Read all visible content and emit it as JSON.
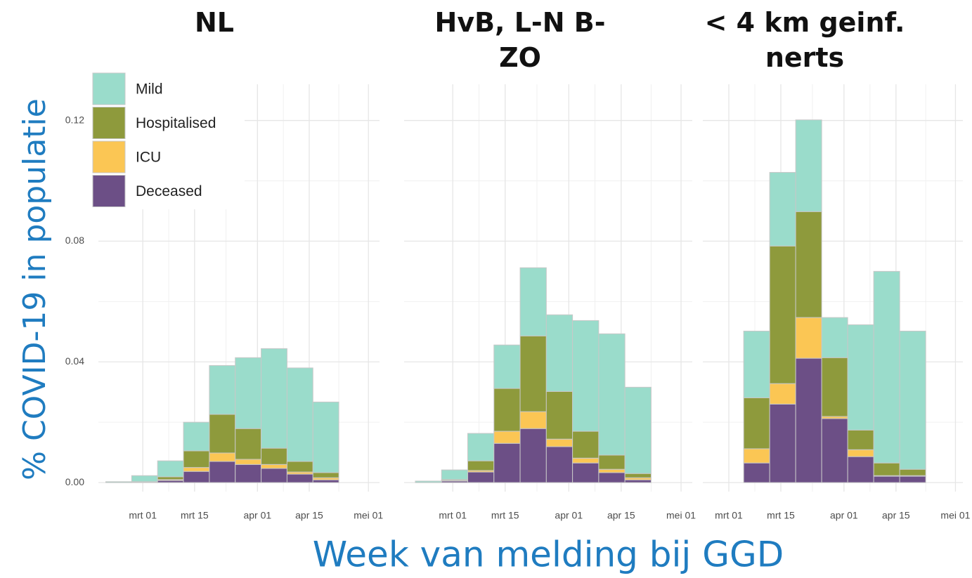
{
  "ylabel": "% COVID-19 in populatie",
  "xlabel": "Week van melding bij GGD",
  "chart_data": [
    {
      "type": "histogram",
      "title": [
        "NL"
      ],
      "legend": "top-left",
      "grid": true,
      "bins": [
        "02-20",
        "02-27",
        "03-05",
        "03-12",
        "03-19",
        "03-26",
        "04-02",
        "04-09",
        "04-16",
        "04-23"
      ],
      "xlim": [
        "02-18",
        "05-04"
      ],
      "xticks": [
        {
          "value": "03-01",
          "label": "mrt 01"
        },
        {
          "value": "03-15",
          "label": "mrt 15"
        },
        {
          "value": "04-01",
          "label": "apr 01"
        },
        {
          "value": "04-15",
          "label": "apr 15"
        },
        {
          "value": "05-01",
          "label": "mei 01"
        }
      ],
      "ylim": [
        -0.003,
        0.132
      ],
      "yticks": [
        {
          "value": 0,
          "label": "0.00"
        },
        0.04,
        0.08,
        0.12
      ],
      "series": [
        {
          "name": "Mild",
          "color": "#9adccb",
          "values": [
            0.0003,
            0.002,
            0.0053,
            0.0095,
            0.0162,
            0.0235,
            0.033,
            0.031,
            0.0234
          ]
        },
        {
          "name": "Hospitalised",
          "color": "#8e9a3c",
          "values": [
            0,
            0.0001,
            0.0009,
            0.0055,
            0.0128,
            0.0102,
            0.0054,
            0.0035,
            0.0017
          ]
        },
        {
          "name": "ICU",
          "color": "#fbc654",
          "values": [
            0,
            0.0001,
            0.0003,
            0.0013,
            0.0028,
            0.0017,
            0.0013,
            0.0007,
            0.0007
          ]
        },
        {
          "name": "Deceased",
          "color": "#6c4f86",
          "values": [
            0,
            0.0001,
            0.0007,
            0.0037,
            0.007,
            0.006,
            0.0047,
            0.0028,
            0.0009
          ]
        }
      ]
    },
    {
      "type": "histogram",
      "title": [
        "HvB,  L-N B-",
        "ZO"
      ],
      "grid": true,
      "bins": [
        "02-20",
        "02-27",
        "03-05",
        "03-12",
        "03-19",
        "03-26",
        "04-02",
        "04-09",
        "04-16",
        "04-23"
      ],
      "xlim": [
        "02-17",
        "05-04"
      ],
      "xticks": [
        {
          "value": "03-01",
          "label": "mrt 01"
        },
        {
          "value": "03-15",
          "label": "mrt 15"
        },
        {
          "value": "04-01",
          "label": "apr 01"
        },
        {
          "value": "04-15",
          "label": "apr 15"
        },
        {
          "value": "05-01",
          "label": "mei 01"
        }
      ],
      "ylim": [
        -0.003,
        0.132
      ],
      "yticks": [
        0,
        0.04,
        0.08,
        0.12
      ],
      "series": [
        {
          "name": "Mild",
          "color": "#9adccb",
          "values": [
            0.0005,
            0.0032,
            0.0091,
            0.0144,
            0.0226,
            0.0254,
            0.0367,
            0.0402,
            0.0286
          ]
        },
        {
          "name": "Hospitalised",
          "color": "#8e9a3c",
          "values": [
            0,
            0.0003,
            0.0032,
            0.0142,
            0.0251,
            0.0158,
            0.0089,
            0.0047,
            0.0014
          ]
        },
        {
          "name": "ICU",
          "color": "#fbc654",
          "values": [
            0,
            0.0002,
            0.0005,
            0.004,
            0.0056,
            0.0025,
            0.0016,
            0.0011,
            0.0007
          ]
        },
        {
          "name": "Deceased",
          "color": "#6c4f86",
          "values": [
            0,
            0.0005,
            0.0035,
            0.013,
            0.0179,
            0.0119,
            0.0065,
            0.0033,
            0.0009
          ]
        }
      ]
    },
    {
      "type": "histogram",
      "title": [
        "< 4 km geinf.",
        "nerts"
      ],
      "grid": true,
      "bins": [
        "03-05",
        "03-12",
        "03-19",
        "03-26",
        "04-02",
        "04-09",
        "04-16",
        "04-23"
      ],
      "xlim": [
        "02-23",
        "05-03"
      ],
      "xticks": [
        {
          "value": "03-01",
          "label": "mrt 01"
        },
        {
          "value": "03-15",
          "label": "mrt 15"
        },
        {
          "value": "04-01",
          "label": "apr 01"
        },
        {
          "value": "04-15",
          "label": "apr 15"
        },
        {
          "value": "05-01",
          "label": "mei 01"
        }
      ],
      "ylim": [
        -0.003,
        0.132
      ],
      "yticks": [
        0,
        0.04,
        0.08,
        0.12
      ],
      "series": [
        {
          "name": "Mild",
          "color": "#9adccb",
          "values": [
            0.0221,
            0.0244,
            0.0304,
            0.0133,
            0.0349,
            0.0635,
            0.0458
          ]
        },
        {
          "name": "Hospitalised",
          "color": "#8e9a3c",
          "values": [
            0.0169,
            0.0456,
            0.0351,
            0.0195,
            0.0065,
            0.0042,
            0.0021
          ]
        },
        {
          "name": "ICU",
          "color": "#fbc654",
          "values": [
            0.0047,
            0.0068,
            0.0135,
            0.0007,
            0.0023,
            0.0002,
            0.0002
          ]
        },
        {
          "name": "Deceased",
          "color": "#6c4f86",
          "values": [
            0.0065,
            0.026,
            0.0412,
            0.0212,
            0.0086,
            0.0021,
            0.0021
          ]
        }
      ]
    }
  ]
}
